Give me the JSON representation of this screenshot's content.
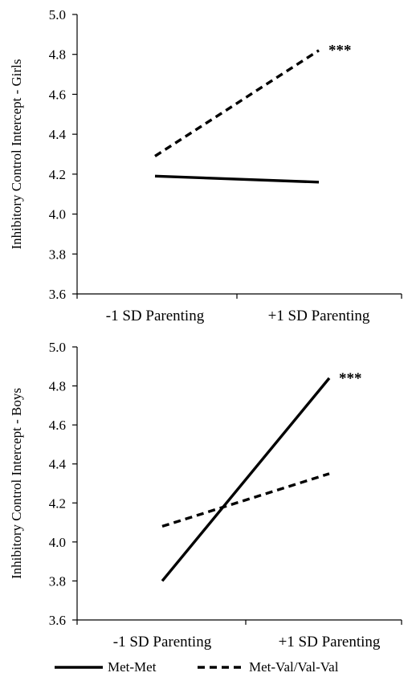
{
  "chart_data": [
    {
      "type": "line",
      "ylabel": "Inhibitory Control Intercept - Girls",
      "categories": [
        "-1 SD Parenting",
        "+1 SD Parenting"
      ],
      "ylim": [
        3.6,
        5.0
      ],
      "yticks": [
        "3.6",
        "3.8",
        "4.0",
        "4.2",
        "4.4",
        "4.6",
        "4.8",
        "5.0"
      ],
      "series": [
        {
          "name": "Met-Met",
          "values": [
            4.19,
            4.16
          ],
          "style": "solid",
          "color": "#000000"
        },
        {
          "name": "Met-Val/Val-Val",
          "values": [
            4.29,
            4.82
          ],
          "style": "dashed",
          "color": "#000000"
        }
      ],
      "annotation": {
        "text": "***",
        "series": "Met-Val/Val-Val"
      }
    },
    {
      "type": "line",
      "ylabel": "Inhibitory Control Intercept - Boys",
      "categories": [
        "-1 SD Parenting",
        "+1 SD Parenting"
      ],
      "ylim": [
        3.6,
        5.0
      ],
      "yticks": [
        "3.6",
        "3.8",
        "4.0",
        "4.2",
        "4.4",
        "4.6",
        "4.8",
        "5.0"
      ],
      "series": [
        {
          "name": "Met-Met",
          "values": [
            3.8,
            4.84
          ],
          "style": "solid",
          "color": "#000000"
        },
        {
          "name": "Met-Val/Val-Val",
          "values": [
            4.08,
            4.35
          ],
          "style": "dashed",
          "color": "#000000"
        }
      ],
      "annotation": {
        "text": "***",
        "series": "Met-Met"
      }
    }
  ],
  "legend": {
    "position": "bottom",
    "items": [
      {
        "label": "Met-Met",
        "style": "solid"
      },
      {
        "label": "Met-Val/Val-Val",
        "style": "dashed"
      }
    ]
  }
}
